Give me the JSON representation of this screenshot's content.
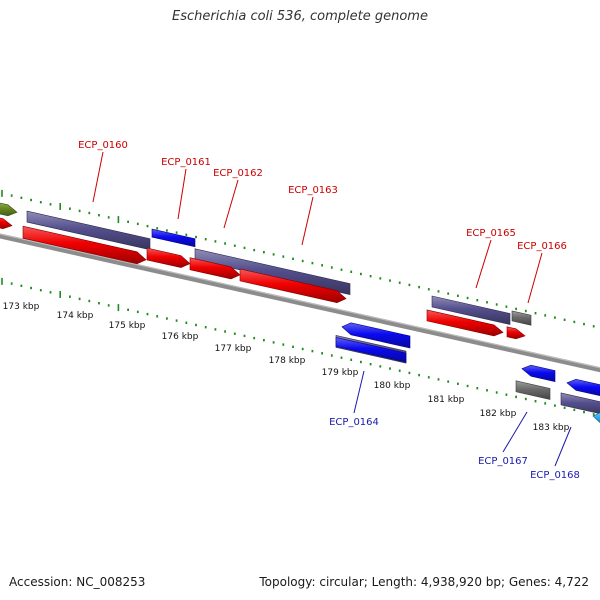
{
  "title": "Escherichia coli 536, complete genome",
  "footer": {
    "accession": "Accession: NC_008253",
    "summary": "Topology: circular; Length: 4,938,920 bp; Genes: 4,722"
  },
  "colors": {
    "forward_label": "#cc0000",
    "reverse_label": "#1a1aaa",
    "cds": "#f00000",
    "gene": "#55508e",
    "reverse_cds": "#0a0af0",
    "pseudo": "#6b6b6b",
    "olive": "#6b8e23",
    "cyan": "#1eaaf0",
    "tick": "#228b22",
    "backbone": "#8c8c8c"
  },
  "scale": {
    "unit": "kbp",
    "labels": [
      "173 kbp",
      "174 kbp",
      "175 kbp",
      "176 kbp",
      "177 kbp",
      "178 kbp",
      "179 kbp",
      "180 kbp",
      "181 kbp",
      "182 kbp",
      "183 kbp"
    ]
  },
  "genes": [
    {
      "name": "ECP_0160",
      "strand": "forward"
    },
    {
      "name": "ECP_0161",
      "strand": "forward"
    },
    {
      "name": "ECP_0162",
      "strand": "forward"
    },
    {
      "name": "ECP_0163",
      "strand": "forward"
    },
    {
      "name": "ECP_0164",
      "strand": "reverse"
    },
    {
      "name": "ECP_0165",
      "strand": "forward"
    },
    {
      "name": "ECP_0166",
      "strand": "forward"
    },
    {
      "name": "ECP_0167",
      "strand": "reverse"
    },
    {
      "name": "ECP_0168",
      "strand": "reverse"
    }
  ]
}
